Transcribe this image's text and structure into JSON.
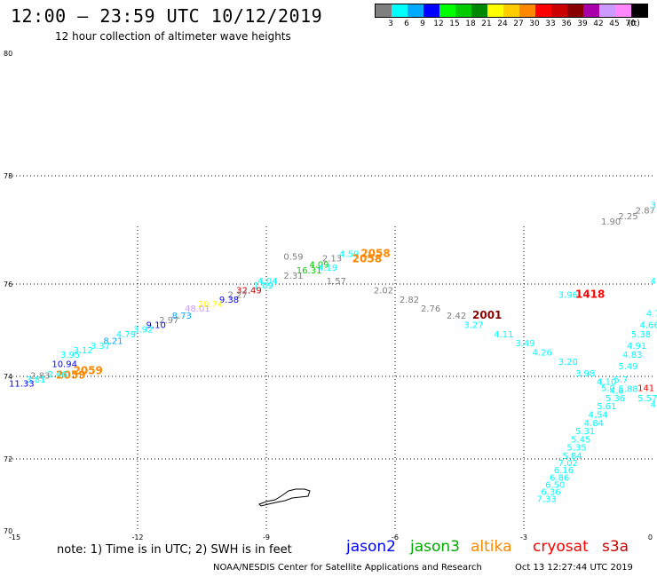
{
  "header": {
    "title": "12:00 — 23:59 UTC 10/12/2019",
    "subtitle": "12 hour collection of altimeter wave heights"
  },
  "color_legend": {
    "unit": "(ft)",
    "bins": [
      {
        "color": "#7f7f7f",
        "label": "3"
      },
      {
        "color": "#00ffff",
        "label": "6"
      },
      {
        "color": "#00aaff",
        "label": "9"
      },
      {
        "color": "#0000ff",
        "label": "12"
      },
      {
        "color": "#00ff00",
        "label": "15"
      },
      {
        "color": "#00cc00",
        "label": "18"
      },
      {
        "color": "#008800",
        "label": "21"
      },
      {
        "color": "#ffff00",
        "label": "24"
      },
      {
        "color": "#ffcc00",
        "label": "27"
      },
      {
        "color": "#ff8800",
        "label": "30"
      },
      {
        "color": "#ff0000",
        "label": "33"
      },
      {
        "color": "#cc0000",
        "label": "36"
      },
      {
        "color": "#880000",
        "label": "39"
      },
      {
        "color": "#aa00aa",
        "label": "42"
      },
      {
        "color": "#cc99ff",
        "label": "45"
      },
      {
        "color": "#ff88ff",
        "label": "70"
      },
      {
        "color": "#000000",
        "label": ""
      }
    ]
  },
  "map": {
    "lat_labels": [
      "80",
      "78",
      "76",
      "74",
      "72",
      "70"
    ],
    "lon_labels": [
      "-15",
      "-12",
      "-9",
      "-6",
      "-3",
      "0"
    ],
    "swh_labels": [
      {
        "text": "1.90",
        "color": "#7f7f7f",
        "lon": -1.2,
        "lat": 77.1
      },
      {
        "text": "2.25",
        "color": "#7f7f7f",
        "lon": -0.8,
        "lat": 77.2
      },
      {
        "text": "2.87",
        "color": "#7f7f7f",
        "lon": -0.4,
        "lat": 77.3
      },
      {
        "text": "3.",
        "color": "#00ffff",
        "lon": -0.05,
        "lat": 77.4
      },
      {
        "text": "0.59",
        "color": "#7f7f7f",
        "lon": -8.6,
        "lat": 76.45
      },
      {
        "text": "2.13",
        "color": "#7f7f7f",
        "lon": -7.7,
        "lat": 76.42
      },
      {
        "text": "4.59",
        "color": "#00ffff",
        "lon": -7.3,
        "lat": 76.5
      },
      {
        "text": "2058",
        "color": "#ff8800",
        "lon": -6.8,
        "lat": 76.5
      },
      {
        "text": "2058",
        "color": "#ff8800",
        "lon": -7.0,
        "lat": 76.4
      },
      {
        "text": "4.09",
        "color": "#00cc00",
        "lon": -8.0,
        "lat": 76.3
      },
      {
        "text": "4.19",
        "color": "#00ffff",
        "lon": -7.8,
        "lat": 76.25
      },
      {
        "text": "16.31",
        "color": "#00cc00",
        "lon": -8.3,
        "lat": 76.2
      },
      {
        "text": "2.31",
        "color": "#7f7f7f",
        "lon": -8.6,
        "lat": 76.1
      },
      {
        "text": "1.57",
        "color": "#7f7f7f",
        "lon": -7.6,
        "lat": 76.0
      },
      {
        "text": "4.04",
        "color": "#00ffff",
        "lon": -9.2,
        "lat": 76.0
      },
      {
        "text": "1.09",
        "color": "#00ffff",
        "lon": -9.3,
        "lat": 75.9
      },
      {
        "text": "2.02",
        "color": "#7f7f7f",
        "lon": -6.5,
        "lat": 75.8
      },
      {
        "text": "32.49",
        "color": "#cc0000",
        "lon": -9.7,
        "lat": 75.8
      },
      {
        "text": "2.27",
        "color": "#7f7f7f",
        "lon": -9.9,
        "lat": 75.7
      },
      {
        "text": "9.38",
        "color": "#0000ff",
        "lon": -10.1,
        "lat": 75.6
      },
      {
        "text": "2.82",
        "color": "#7f7f7f",
        "lon": -5.9,
        "lat": 75.6
      },
      {
        "text": "20.74",
        "color": "#ffff00",
        "lon": -10.6,
        "lat": 75.5
      },
      {
        "text": "2.76",
        "color": "#7f7f7f",
        "lon": -5.4,
        "lat": 75.4
      },
      {
        "text": "48.01",
        "color": "#cc99ff",
        "lon": -10.9,
        "lat": 75.4
      },
      {
        "text": "2.42",
        "color": "#7f7f7f",
        "lon": -4.8,
        "lat": 75.25
      },
      {
        "text": "2001",
        "color": "#880000",
        "lon": -4.2,
        "lat": 75.25
      },
      {
        "text": "8.73",
        "color": "#00aaff",
        "lon": -11.2,
        "lat": 75.25
      },
      {
        "text": "2.97",
        "color": "#7f7f7f",
        "lon": -11.5,
        "lat": 75.15
      },
      {
        "text": "3.27",
        "color": "#00ffff",
        "lon": -4.4,
        "lat": 75.05
      },
      {
        "text": "9.10",
        "color": "#0000ff",
        "lon": -11.8,
        "lat": 75.05
      },
      {
        "text": "3.92",
        "color": "#00ffff",
        "lon": -12.1,
        "lat": 74.95
      },
      {
        "text": "4.11",
        "color": "#00ffff",
        "lon": -3.7,
        "lat": 74.85
      },
      {
        "text": "4.79",
        "color": "#00ffff",
        "lon": -12.5,
        "lat": 74.85
      },
      {
        "text": "8.21",
        "color": "#00aaff",
        "lon": -12.8,
        "lat": 74.7
      },
      {
        "text": "3.49",
        "color": "#00ffff",
        "lon": -3.2,
        "lat": 74.65
      },
      {
        "text": "3.37",
        "color": "#00ffff",
        "lon": -13.1,
        "lat": 74.6
      },
      {
        "text": "4.26",
        "color": "#00ffff",
        "lon": -2.8,
        "lat": 74.45
      },
      {
        "text": "3.12",
        "color": "#00ffff",
        "lon": -13.5,
        "lat": 74.5
      },
      {
        "text": "3.95",
        "color": "#00ffff",
        "lon": -13.8,
        "lat": 74.4
      },
      {
        "text": "3.20",
        "color": "#00ffff",
        "lon": -2.2,
        "lat": 74.25
      },
      {
        "text": "10.94",
        "color": "#0000ff",
        "lon": -14.0,
        "lat": 74.2
      },
      {
        "text": "2059",
        "color": "#ff8800",
        "lon": -13.5,
        "lat": 74.05
      },
      {
        "text": "2059",
        "color": "#ff8800",
        "lon": -13.9,
        "lat": 73.95
      },
      {
        "text": "2.46",
        "color": "#00ffff",
        "lon": -14.1,
        "lat": 73.98
      },
      {
        "text": "2.83",
        "color": "#7f7f7f",
        "lon": -14.5,
        "lat": 73.95
      },
      {
        "text": "3.81",
        "color": "#00ffff",
        "lon": -14.6,
        "lat": 73.85
      },
      {
        "text": "11.33",
        "color": "#0000ff",
        "lon": -15.0,
        "lat": 73.75
      },
      {
        "text": "3.96",
        "color": "#00ffff",
        "lon": -2.2,
        "lat": 75.7
      },
      {
        "text": "1418",
        "color": "#ff0000",
        "lon": -1.8,
        "lat": 75.7
      },
      {
        "text": "3.98",
        "color": "#00ffff",
        "lon": -1.8,
        "lat": 74.0
      },
      {
        "text": "4.10",
        "color": "#00ffff",
        "lon": -1.3,
        "lat": 73.8
      },
      {
        "text": "5.7",
        "color": "#00ffff",
        "lon": -0.9,
        "lat": 73.85
      },
      {
        "text": "5.0",
        "color": "#00ffff",
        "lon": -1.2,
        "lat": 73.65
      },
      {
        "text": "5.88",
        "color": "#00ffff",
        "lon": -0.8,
        "lat": 73.62
      },
      {
        "text": "4.6",
        "color": "#00ffff",
        "lon": -1.0,
        "lat": 73.58
      },
      {
        "text": "141",
        "color": "#ff0000",
        "lon": -0.35,
        "lat": 73.65
      },
      {
        "text": "5.57",
        "color": "#00ffff",
        "lon": -0.35,
        "lat": 73.4
      },
      {
        "text": "5.36",
        "color": "#00ffff",
        "lon": -1.1,
        "lat": 73.4
      },
      {
        "text": "5.61",
        "color": "#00ffff",
        "lon": -1.3,
        "lat": 73.2
      },
      {
        "text": "4.54",
        "color": "#00ffff",
        "lon": -1.5,
        "lat": 73.0
      },
      {
        "text": "4.84",
        "color": "#00ffff",
        "lon": -1.6,
        "lat": 72.8
      },
      {
        "text": "5.31",
        "color": "#00ffff",
        "lon": -1.8,
        "lat": 72.6
      },
      {
        "text": "5.45",
        "color": "#00ffff",
        "lon": -1.9,
        "lat": 72.4
      },
      {
        "text": "5.35",
        "color": "#00ffff",
        "lon": -2.0,
        "lat": 72.2
      },
      {
        "text": "5.84",
        "color": "#00ffff",
        "lon": -2.1,
        "lat": 72.0
      },
      {
        "text": "7.02",
        "color": "#00ffff",
        "lon": -2.2,
        "lat": 71.8
      },
      {
        "text": "6.16",
        "color": "#00ffff",
        "lon": -2.3,
        "lat": 71.6
      },
      {
        "text": "6.86",
        "color": "#00ffff",
        "lon": -2.4,
        "lat": 71.4
      },
      {
        "text": "6.50",
        "color": "#00ffff",
        "lon": -2.5,
        "lat": 71.2
      },
      {
        "text": "6.36",
        "color": "#00ffff",
        "lon": -2.6,
        "lat": 71.0
      },
      {
        "text": "7.33",
        "color": "#00ffff",
        "lon": -2.7,
        "lat": 70.8
      },
      {
        "text": "4.",
        "color": "#00ffff",
        "lon": -0.05,
        "lat": 76.0
      },
      {
        "text": "4.7",
        "color": "#00ffff",
        "lon": -0.15,
        "lat": 75.3
      },
      {
        "text": "4.66",
        "color": "#00ffff",
        "lon": -0.3,
        "lat": 75.05
      },
      {
        "text": "5.38",
        "color": "#00ffff",
        "lon": -0.5,
        "lat": 74.85
      },
      {
        "text": "4.91",
        "color": "#00ffff",
        "lon": -0.6,
        "lat": 74.6
      },
      {
        "text": "4.83",
        "color": "#00ffff",
        "lon": -0.7,
        "lat": 74.4
      },
      {
        "text": "5.49",
        "color": "#00ffff",
        "lon": -0.8,
        "lat": 74.15
      },
      {
        "text": "4.",
        "color": "#00ffff",
        "lon": -0.05,
        "lat": 73.25
      }
    ]
  },
  "notes": {
    "note_text": "note:  1) Time is in UTC;  2) SWH is in feet"
  },
  "satellites": [
    {
      "name": "jason2",
      "color": "#0000ff"
    },
    {
      "name": "jason3",
      "color": "#00aa00"
    },
    {
      "name": "altika",
      "color": "#ff8800"
    },
    {
      "name": "cryosat",
      "color": "#ff0000"
    },
    {
      "name": "s3a",
      "color": "#cc0000"
    }
  ],
  "footer": {
    "credit": "NOAA/NESDIS Center for Satellite Applications and Research",
    "timestamp": "Oct 13 12:27:44 UTC 2019"
  }
}
